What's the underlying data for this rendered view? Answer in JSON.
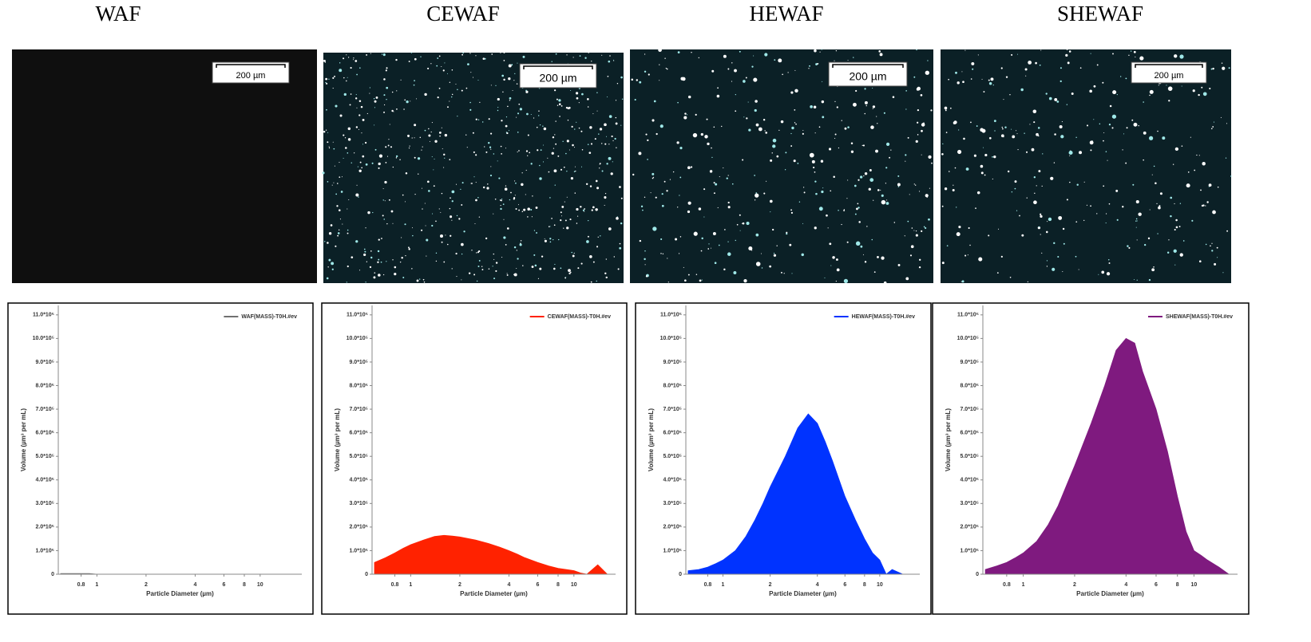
{
  "panels": [
    {
      "title": "WAF",
      "scale_bar": "200 µm"
    },
    {
      "title": "CEWAF",
      "scale_bar": "200 µm"
    },
    {
      "title": "HEWAF",
      "scale_bar": "200 µm"
    },
    {
      "title": "SHEWAF",
      "scale_bar": "200 µm"
    }
  ],
  "chart_data": [
    {
      "type": "area",
      "x_label": "Particle Diameter (µm)",
      "y_label": "Volume (µm³ per mL)",
      "xscale": "log",
      "xlim": [
        0.58,
        18
      ],
      "xticks": [
        0.8,
        1,
        2,
        4,
        6,
        8,
        10
      ],
      "ylim": [
        0,
        1140000
      ],
      "yticks": [
        0,
        {
          "value": 100000,
          "label": "1.0*10⁵"
        },
        {
          "value": 200000,
          "label": "2.0*10⁵"
        },
        {
          "value": 300000,
          "label": "3.0*10⁵"
        },
        {
          "value": 400000,
          "label": "4.0*10⁵"
        },
        {
          "value": 500000,
          "label": "5.0*10⁵"
        },
        {
          "value": 600000,
          "label": "6.0*10⁵"
        },
        {
          "value": 700000,
          "label": "7.0*10⁵"
        },
        {
          "value": 800000,
          "label": "8.0*10⁵"
        },
        {
          "value": 900000,
          "label": "9.0*10⁵"
        },
        {
          "value": 1000000,
          "label": "10.0*10⁵"
        },
        {
          "value": 1100000,
          "label": "11.0*10⁵"
        }
      ],
      "legend": "top-right",
      "x": [
        0.6,
        0.7,
        0.8,
        0.9,
        1,
        1.2,
        1.4,
        1.6,
        1.8,
        2,
        2.5,
        3,
        3.5,
        4,
        4.5,
        5,
        6,
        7,
        8,
        9,
        10,
        11,
        12,
        14,
        16
      ],
      "series": [
        {
          "name": "WAF(MASS)-T0H.#ev",
          "color": "#707070",
          "values": [
            3000,
            3000,
            3000,
            3000,
            0,
            0,
            0,
            0,
            0,
            0,
            0,
            0,
            0,
            0,
            0,
            0,
            0,
            0,
            0,
            0,
            0,
            0,
            0,
            0,
            0
          ]
        }
      ]
    },
    {
      "type": "area",
      "x_label": "Particle Diameter (µm)",
      "y_label": "Volume (µm³ per mL)",
      "xscale": "log",
      "xlim": [
        0.58,
        18
      ],
      "xticks": [
        0.8,
        1,
        2,
        4,
        6,
        8,
        10
      ],
      "ylim": [
        0,
        1140000
      ],
      "yticks": [
        0,
        {
          "value": 100000,
          "label": "1.0*10⁵"
        },
        {
          "value": 200000,
          "label": "2.0*10⁵"
        },
        {
          "value": 300000,
          "label": "3.0*10⁵"
        },
        {
          "value": 400000,
          "label": "4.0*10⁵"
        },
        {
          "value": 500000,
          "label": "5.0*10⁵"
        },
        {
          "value": 600000,
          "label": "6.0*10⁵"
        },
        {
          "value": 700000,
          "label": "7.0*10⁵"
        },
        {
          "value": 800000,
          "label": "8.0*10⁵"
        },
        {
          "value": 900000,
          "label": "9.0*10⁵"
        },
        {
          "value": 1000000,
          "label": "10.0*10⁵"
        },
        {
          "value": 1100000,
          "label": "11.0*10⁵"
        }
      ],
      "legend": "top-right",
      "x": [
        0.6,
        0.7,
        0.8,
        0.9,
        1,
        1.2,
        1.4,
        1.6,
        1.8,
        2,
        2.5,
        3,
        3.5,
        4,
        4.5,
        5,
        6,
        7,
        8,
        9,
        10,
        11,
        12,
        14,
        16
      ],
      "series": [
        {
          "name": "CEWAF(MASS)-T0H.#ev",
          "color": "#ff2200",
          "values": [
            50000,
            70000,
            90000,
            110000,
            125000,
            145000,
            160000,
            165000,
            162000,
            158000,
            145000,
            130000,
            115000,
            100000,
            85000,
            70000,
            50000,
            35000,
            25000,
            20000,
            15000,
            5000,
            0,
            40000,
            0
          ]
        }
      ]
    },
    {
      "type": "area",
      "x_label": "Particle Diameter (µm)",
      "y_label": "Volume (µm³ per mL)",
      "xscale": "log",
      "xlim": [
        0.58,
        18
      ],
      "xticks": [
        0.8,
        1,
        2,
        4,
        6,
        8,
        10
      ],
      "ylim": [
        0,
        1140000
      ],
      "yticks": [
        0,
        {
          "value": 100000,
          "label": "1.0*10⁵"
        },
        {
          "value": 200000,
          "label": "2.0*10⁵"
        },
        {
          "value": 300000,
          "label": "3.0*10⁵"
        },
        {
          "value": 400000,
          "label": "4.0*10⁵"
        },
        {
          "value": 500000,
          "label": "5.0*10⁵"
        },
        {
          "value": 600000,
          "label": "6.0*10⁵"
        },
        {
          "value": 700000,
          "label": "7.0*10⁵"
        },
        {
          "value": 800000,
          "label": "8.0*10⁵"
        },
        {
          "value": 900000,
          "label": "9.0*10⁵"
        },
        {
          "value": 1000000,
          "label": "10.0*10⁵"
        },
        {
          "value": 1100000,
          "label": "11.0*10⁵"
        }
      ],
      "legend": "top-right",
      "x": [
        0.6,
        0.7,
        0.8,
        0.9,
        1,
        1.2,
        1.4,
        1.6,
        1.8,
        2,
        2.5,
        3,
        3.5,
        4,
        4.5,
        5,
        6,
        7,
        8,
        9,
        10,
        11,
        12,
        14,
        16
      ],
      "series": [
        {
          "name": "HEWAF(MASS)-T0H.#ev",
          "color": "#0033ff",
          "values": [
            15000,
            20000,
            30000,
            45000,
            60000,
            100000,
            160000,
            230000,
            300000,
            370000,
            500000,
            620000,
            680000,
            640000,
            560000,
            480000,
            330000,
            230000,
            150000,
            90000,
            60000,
            0,
            20000,
            0,
            0
          ]
        }
      ]
    },
    {
      "type": "area",
      "x_label": "Particle Diameter (µm)",
      "y_label": "Volume (µm³ per mL)",
      "xscale": "log",
      "xlim": [
        0.58,
        18
      ],
      "xticks": [
        0.8,
        1,
        2,
        4,
        6,
        8,
        10
      ],
      "ylim": [
        0,
        1140000
      ],
      "yticks": [
        0,
        {
          "value": 100000,
          "label": "1.0*10⁵"
        },
        {
          "value": 200000,
          "label": "2.0*10⁵"
        },
        {
          "value": 300000,
          "label": "3.0*10⁵"
        },
        {
          "value": 400000,
          "label": "4.0*10⁵"
        },
        {
          "value": 500000,
          "label": "5.0*10⁵"
        },
        {
          "value": 600000,
          "label": "6.0*10⁵"
        },
        {
          "value": 700000,
          "label": "7.0*10⁵"
        },
        {
          "value": 800000,
          "label": "8.0*10⁵"
        },
        {
          "value": 900000,
          "label": "9.0*10⁵"
        },
        {
          "value": 1000000,
          "label": "10.0*10⁵"
        },
        {
          "value": 1100000,
          "label": "11.0*10⁵"
        }
      ],
      "legend": "top-right",
      "x": [
        0.6,
        0.7,
        0.8,
        0.9,
        1,
        1.2,
        1.4,
        1.6,
        1.8,
        2,
        2.5,
        3,
        3.5,
        4,
        4.5,
        5,
        6,
        7,
        8,
        9,
        10,
        11,
        12,
        14,
        16
      ],
      "series": [
        {
          "name": "SHEWAF(MASS)-T0H.#ev",
          "color": "#7f1a7f",
          "values": [
            20000,
            35000,
            50000,
            70000,
            90000,
            140000,
            210000,
            290000,
            380000,
            460000,
            640000,
            800000,
            950000,
            1000000,
            980000,
            860000,
            700000,
            520000,
            330000,
            180000,
            100000,
            80000,
            60000,
            30000,
            0
          ]
        }
      ]
    }
  ]
}
